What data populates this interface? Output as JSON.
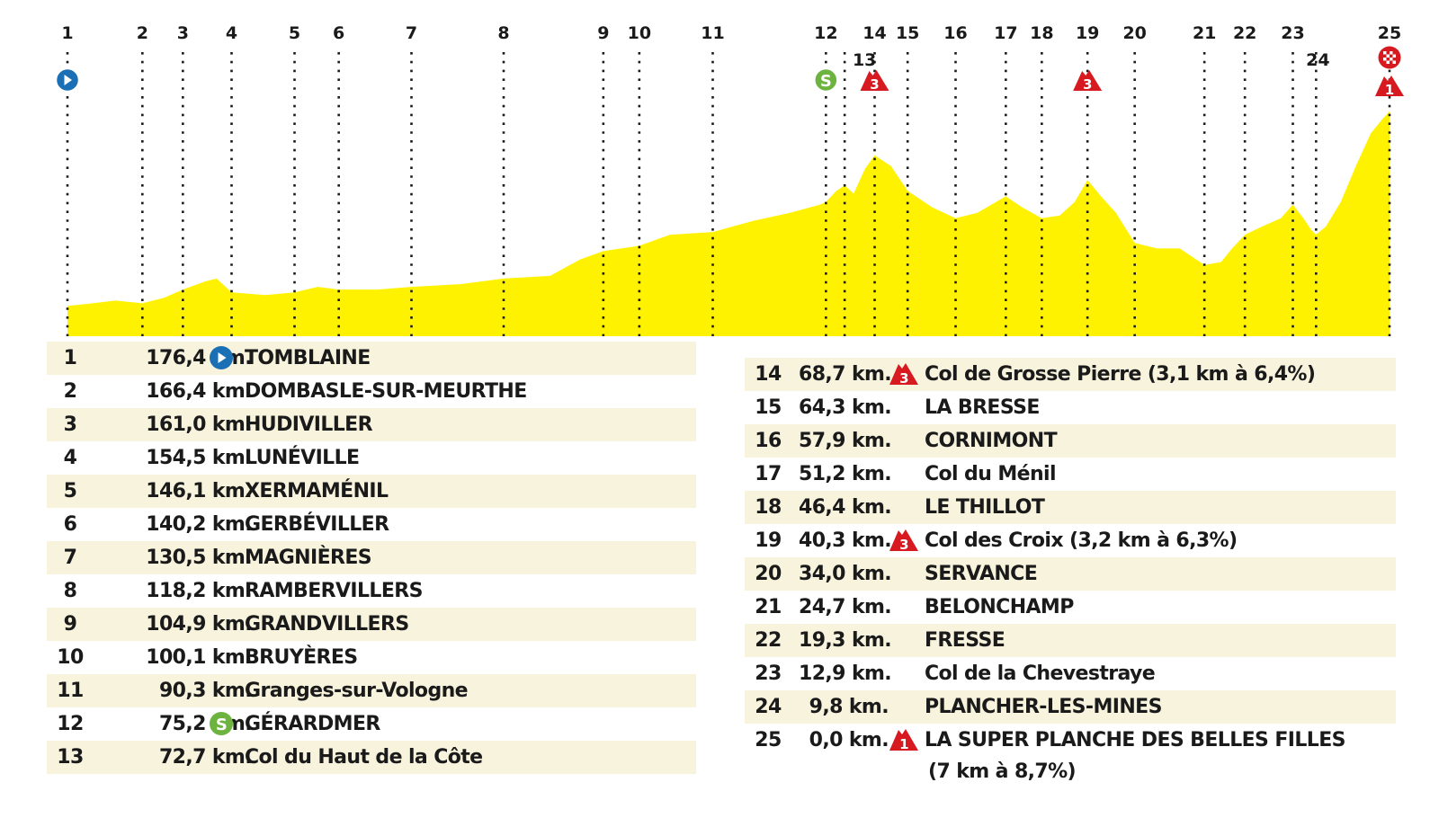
{
  "colors": {
    "profile_fill": "#fff200",
    "row_shade": "#f7f3dd",
    "start_icon": "#1b6fb5",
    "sprint_icon": "#6cb33f",
    "climb_icon": "#d71920",
    "finish_icon": "#d71920"
  },
  "chart_data": {
    "type": "area",
    "title": "",
    "xlabel": "",
    "ylabel": "",
    "x_unit": "km remaining",
    "xlim": [
      176.4,
      0
    ],
    "waypoints": [
      {
        "num": "1",
        "km": 176.4,
        "icon": "start-icon"
      },
      {
        "num": "2",
        "km": 166.4,
        "icon": ""
      },
      {
        "num": "3",
        "km": 161.0,
        "icon": ""
      },
      {
        "num": "4",
        "km": 154.5,
        "icon": ""
      },
      {
        "num": "5",
        "km": 146.1,
        "icon": ""
      },
      {
        "num": "6",
        "km": 140.2,
        "icon": ""
      },
      {
        "num": "7",
        "km": 130.5,
        "icon": ""
      },
      {
        "num": "8",
        "km": 118.2,
        "icon": ""
      },
      {
        "num": "9",
        "km": 104.9,
        "icon": ""
      },
      {
        "num": "10",
        "km": 100.1,
        "icon": ""
      },
      {
        "num": "11",
        "km": 90.3,
        "icon": ""
      },
      {
        "num": "12",
        "km": 75.2,
        "icon": "sprint-icon"
      },
      {
        "num": "13",
        "km": 72.7,
        "icon": ""
      },
      {
        "num": "14",
        "km": 68.7,
        "icon": "climb-cat3-icon"
      },
      {
        "num": "15",
        "km": 64.3,
        "icon": ""
      },
      {
        "num": "16",
        "km": 57.9,
        "icon": ""
      },
      {
        "num": "17",
        "km": 51.2,
        "icon": ""
      },
      {
        "num": "18",
        "km": 46.4,
        "icon": ""
      },
      {
        "num": "19",
        "km": 40.3,
        "icon": "climb-cat3-icon"
      },
      {
        "num": "20",
        "km": 34.0,
        "icon": ""
      },
      {
        "num": "21",
        "km": 24.7,
        "icon": ""
      },
      {
        "num": "22",
        "km": 19.3,
        "icon": ""
      },
      {
        "num": "23",
        "km": 12.9,
        "icon": ""
      },
      {
        "num": "24",
        "km": 9.8,
        "icon": ""
      },
      {
        "num": "25",
        "km": 0.0,
        "icon": "finish-flag-icon"
      }
    ],
    "relative_elevation": [
      [
        176.4,
        0.11
      ],
      [
        173.0,
        0.12
      ],
      [
        170.0,
        0.13
      ],
      [
        166.4,
        0.12
      ],
      [
        163.5,
        0.14
      ],
      [
        161.0,
        0.17
      ],
      [
        158.0,
        0.2
      ],
      [
        156.5,
        0.21
      ],
      [
        154.5,
        0.16
      ],
      [
        150.0,
        0.15
      ],
      [
        146.1,
        0.16
      ],
      [
        143.0,
        0.18
      ],
      [
        140.2,
        0.17
      ],
      [
        135.0,
        0.17
      ],
      [
        130.5,
        0.18
      ],
      [
        124.0,
        0.19
      ],
      [
        118.2,
        0.21
      ],
      [
        112.0,
        0.22
      ],
      [
        108.0,
        0.28
      ],
      [
        104.9,
        0.31
      ],
      [
        100.1,
        0.33
      ],
      [
        96.0,
        0.37
      ],
      [
        90.3,
        0.38
      ],
      [
        85.0,
        0.42
      ],
      [
        80.0,
        0.45
      ],
      [
        76.0,
        0.48
      ],
      [
        75.2,
        0.49
      ],
      [
        73.8,
        0.53
      ],
      [
        72.7,
        0.55
      ],
      [
        71.5,
        0.52
      ],
      [
        70.0,
        0.61
      ],
      [
        68.7,
        0.66
      ],
      [
        66.5,
        0.62
      ],
      [
        64.3,
        0.53
      ],
      [
        61.0,
        0.47
      ],
      [
        57.9,
        0.43
      ],
      [
        55.0,
        0.45
      ],
      [
        51.2,
        0.51
      ],
      [
        49.0,
        0.47
      ],
      [
        46.4,
        0.43
      ],
      [
        44.0,
        0.44
      ],
      [
        42.0,
        0.49
      ],
      [
        40.3,
        0.57
      ],
      [
        38.5,
        0.51
      ],
      [
        36.5,
        0.45
      ],
      [
        34.0,
        0.34
      ],
      [
        31.0,
        0.32
      ],
      [
        28.0,
        0.32
      ],
      [
        24.7,
        0.26
      ],
      [
        22.5,
        0.27
      ],
      [
        21.0,
        0.32
      ],
      [
        19.3,
        0.37
      ],
      [
        17.0,
        0.4
      ],
      [
        14.5,
        0.43
      ],
      [
        12.9,
        0.48
      ],
      [
        11.5,
        0.43
      ],
      [
        10.5,
        0.39
      ],
      [
        9.8,
        0.37
      ],
      [
        8.5,
        0.4
      ],
      [
        6.5,
        0.49
      ],
      [
        4.5,
        0.62
      ],
      [
        2.5,
        0.74
      ],
      [
        1.0,
        0.79
      ],
      [
        0.0,
        0.82
      ]
    ]
  },
  "table_left": [
    {
      "num": "1",
      "dist": "176,4 km.",
      "icon": "start-icon",
      "name": "TOMBLAINE"
    },
    {
      "num": "2",
      "dist": "166,4 km.",
      "icon": "",
      "name": "DOMBASLE-SUR-MEURTHE"
    },
    {
      "num": "3",
      "dist": "161,0 km.",
      "icon": "",
      "name": "HUDIVILLER"
    },
    {
      "num": "4",
      "dist": "154,5 km.",
      "icon": "",
      "name": "LUNÉVILLE"
    },
    {
      "num": "5",
      "dist": "146,1 km.",
      "icon": "",
      "name": "XERMAMÉNIL"
    },
    {
      "num": "6",
      "dist": "140,2 km.",
      "icon": "",
      "name": "GERBÉVILLER"
    },
    {
      "num": "7",
      "dist": "130,5 km.",
      "icon": "",
      "name": "MAGNIÈRES"
    },
    {
      "num": "8",
      "dist": "118,2 km.",
      "icon": "",
      "name": "RAMBERVILLERS"
    },
    {
      "num": "9",
      "dist": "104,9 km.",
      "icon": "",
      "name": "GRANDVILLERS"
    },
    {
      "num": "10",
      "dist": "100,1 km.",
      "icon": "",
      "name": "BRUYÈRES"
    },
    {
      "num": "11",
      "dist": "90,3 km.",
      "icon": "",
      "name": "Granges-sur-Vologne"
    },
    {
      "num": "12",
      "dist": "75,2 km.",
      "icon": "sprint-icon",
      "name": "GÉRARDMER"
    },
    {
      "num": "13",
      "dist": "72,7 km.",
      "icon": "",
      "name": "Col du Haut de la Côte"
    }
  ],
  "table_right": [
    {
      "num": "14",
      "dist": "68,7 km.",
      "icon": "climb-cat3-icon",
      "name": "Col de Grosse Pierre (3,1 km à 6,4%)"
    },
    {
      "num": "15",
      "dist": "64,3 km.",
      "icon": "",
      "name": "LA BRESSE"
    },
    {
      "num": "16",
      "dist": "57,9 km.",
      "icon": "",
      "name": "CORNIMONT"
    },
    {
      "num": "17",
      "dist": "51,2 km.",
      "icon": "",
      "name": "Col du Ménil"
    },
    {
      "num": "18",
      "dist": "46,4 km.",
      "icon": "",
      "name": "LE THILLOT"
    },
    {
      "num": "19",
      "dist": "40,3 km.",
      "icon": "climb-cat3-icon",
      "name": "Col des Croix (3,2 km à 6,3%)"
    },
    {
      "num": "20",
      "dist": "34,0 km.",
      "icon": "",
      "name": "SERVANCE"
    },
    {
      "num": "21",
      "dist": "24,7 km.",
      "icon": "",
      "name": "BELONCHAMP"
    },
    {
      "num": "22",
      "dist": "19,3 km.",
      "icon": "",
      "name": "FRESSE"
    },
    {
      "num": "23",
      "dist": "12,9 km.",
      "icon": "",
      "name": "Col de la Chevestraye"
    },
    {
      "num": "24",
      "dist": "9,8 km.",
      "icon": "",
      "name": "PLANCHER-LES-MINES"
    },
    {
      "num": "25",
      "dist": "0,0 km.",
      "icon": "climb-cat1-icon",
      "name": "LA SUPER PLANCHE DES BELLES FILLES",
      "name_line2": "(7 km à 8,7%)"
    }
  ],
  "icon_labels": {
    "sprint": "S",
    "climb_cat3": "3",
    "climb_cat1": "1"
  }
}
